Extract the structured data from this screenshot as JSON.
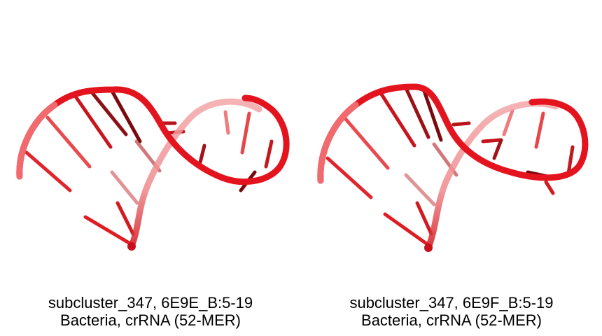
{
  "panels": [
    {
      "caption_line1": "subcluster_347, 6E9E_B:5-19",
      "caption_line2": "Bacteria, crRNA (52-MER)"
    },
    {
      "caption_line1": "subcluster_347, 6E9F_B:5-19",
      "caption_line2": "Bacteria, crRNA (52-MER)"
    }
  ],
  "colors": {
    "backbone": "#e3141e",
    "backbone_light": "#f06a6e",
    "base_dark": "#7a0a0e",
    "base": "#d8151c"
  }
}
